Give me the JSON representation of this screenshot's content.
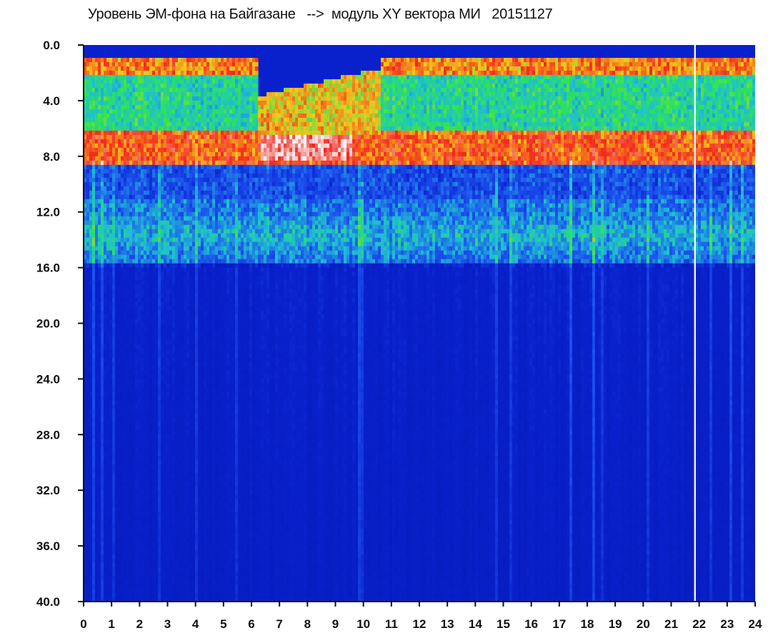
{
  "chart_data": {
    "type": "heatmap",
    "title": "Уровень ЭМ-фона на Байгазане   -->  модуль XY вектора МИ   20151127",
    "xlabel": "",
    "ylabel": "",
    "xlim": [
      0,
      24
    ],
    "ylim": [
      0.0,
      40.0
    ],
    "y_inverted": true,
    "x_ticks": [
      "0",
      "1",
      "2",
      "3",
      "4",
      "5",
      "6",
      "7",
      "8",
      "9",
      "10",
      "11",
      "12",
      "13",
      "14",
      "15",
      "16",
      "17",
      "18",
      "19",
      "20",
      "21",
      "22",
      "23",
      "24"
    ],
    "y_ticks": [
      "0.0",
      "4.0",
      "8.0",
      "12.0",
      "16.0",
      "20.0",
      "24.0",
      "28.0",
      "32.0",
      "36.0",
      "40.0"
    ],
    "colormap": [
      "#ffffff",
      "#ff2a1a",
      "#ffd21a",
      "#32f050",
      "#20c8d8",
      "#1f55f5",
      "#0a23d2",
      "#061ab8"
    ],
    "background_color": "#0a23d2",
    "bands": [
      {
        "y_from": 0.8,
        "y_to": 2.0,
        "level": "red-yellow"
      },
      {
        "y_from": 2.0,
        "y_to": 6.0,
        "level": "green-cyan"
      },
      {
        "y_from": 6.0,
        "y_to": 8.5,
        "level": "red-white"
      },
      {
        "y_from": 8.5,
        "y_to": 15.5,
        "level": "blue-cyan"
      },
      {
        "y_from": 15.5,
        "y_to": 40.0,
        "level": "deep-blue"
      }
    ],
    "gap_columns_hours": [
      21.85
    ]
  },
  "colors": {
    "axis": "#111111",
    "text": "#111111"
  }
}
